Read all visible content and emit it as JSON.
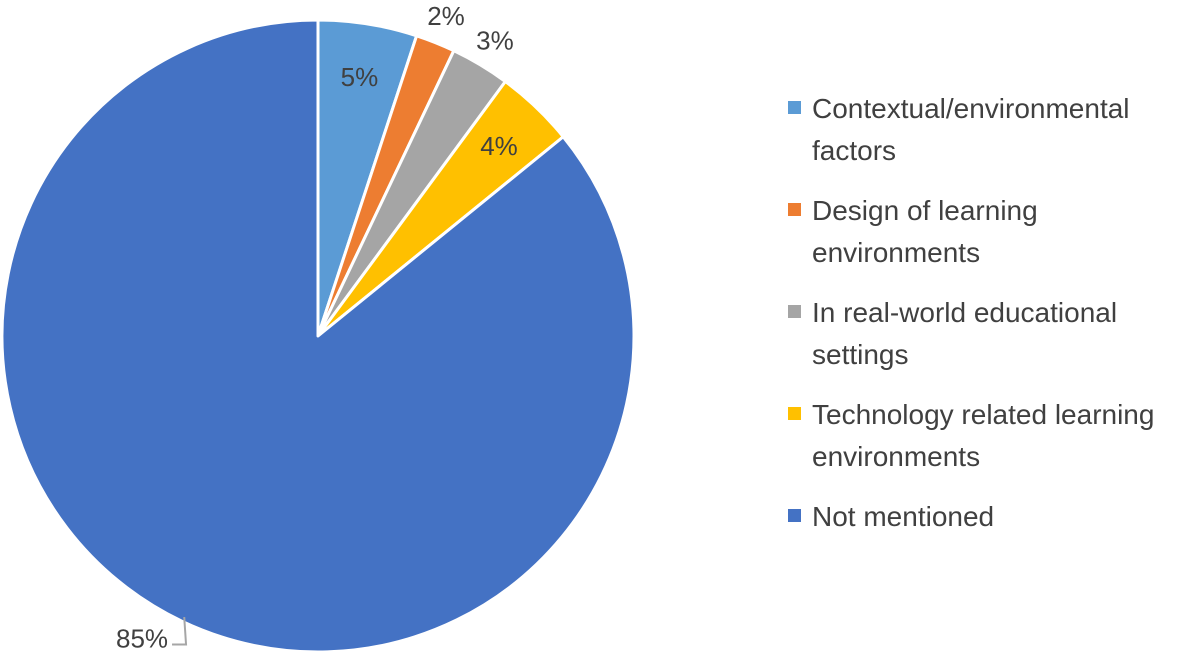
{
  "chart_data": {
    "type": "pie",
    "title": "",
    "start_angle_deg": 0,
    "direction": "clockwise",
    "series": [
      {
        "values": [
          5,
          2,
          3,
          4,
          85
        ],
        "labels": [
          "5%",
          "2%",
          "3%",
          "4%",
          "85%"
        ]
      }
    ],
    "categories": [
      "Contextual/environmental factors",
      "Design of learning environments",
      "In real-world educational settings",
      "Technology related learning environments",
      "Not mentioned"
    ],
    "colors": [
      "#5B9BD5",
      "#ED7D31",
      "#A5A5A5",
      "#FFC000",
      "#4472C4"
    ],
    "legend_position": "right"
  }
}
